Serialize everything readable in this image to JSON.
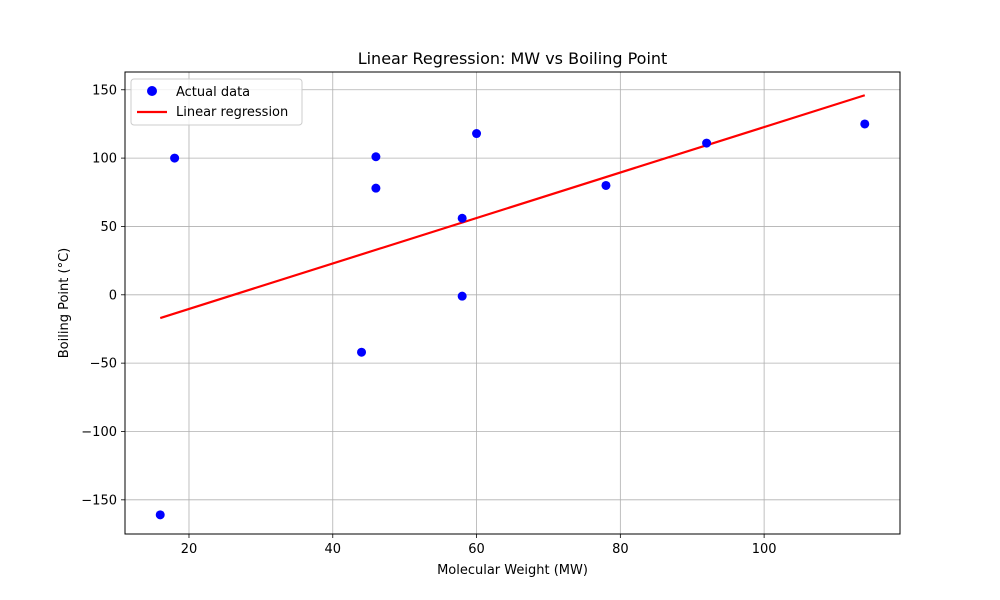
{
  "chart_data": {
    "type": "scatter",
    "title": "Linear Regression: MW vs Boiling Point",
    "xlabel": "Molecular Weight (MW)",
    "ylabel": "Boiling Point (°C)",
    "xlim": [
      11.1,
      118.9
    ],
    "ylim": [
      -175.0,
      163.0
    ],
    "xticks": [
      20,
      40,
      60,
      80,
      100
    ],
    "yticks": [
      -150,
      -100,
      -50,
      0,
      50,
      100,
      150
    ],
    "grid": true,
    "legend_position": "top-left",
    "series": [
      {
        "name": "Actual data",
        "kind": "scatter",
        "color": "#0000ff",
        "points": [
          {
            "x": 16,
            "y": -161
          },
          {
            "x": 18,
            "y": 100
          },
          {
            "x": 44,
            "y": -42
          },
          {
            "x": 46,
            "y": 101
          },
          {
            "x": 46,
            "y": 78
          },
          {
            "x": 58,
            "y": 56
          },
          {
            "x": 58,
            "y": -1
          },
          {
            "x": 60,
            "y": 118
          },
          {
            "x": 78,
            "y": 80
          },
          {
            "x": 92,
            "y": 111
          },
          {
            "x": 114,
            "y": 125
          }
        ]
      },
      {
        "name": "Linear regression",
        "kind": "line",
        "color": "#ff0000",
        "points": [
          {
            "x": 16,
            "y": -17
          },
          {
            "x": 114,
            "y": 146
          }
        ]
      }
    ]
  }
}
